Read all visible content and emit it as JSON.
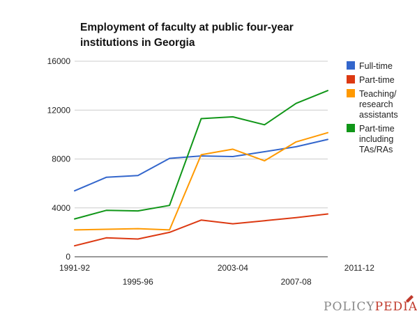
{
  "chart_data": {
    "type": "line",
    "title_lines": [
      "Employment of faculty at public four-year",
      "institutions in Georgia"
    ],
    "xlabel": "",
    "ylabel": "",
    "x": [
      "1991-92",
      "1993-94",
      "1995-96",
      "1997-98",
      "1999-00",
      "2003-04",
      "2005-06",
      "2007-08",
      "2009-10",
      "2011-12"
    ],
    "x_tick_labels": [
      {
        "label": "1991-92",
        "index": 0,
        "row": 1
      },
      {
        "label": "1995-96",
        "index": 2,
        "row": 2
      },
      {
        "label": "2003-04",
        "index": 5,
        "row": 1
      },
      {
        "label": "2007-08",
        "index": 7,
        "row": 2
      },
      {
        "label": "2011-12",
        "index": 9,
        "row": 1
      }
    ],
    "ylim": [
      0,
      16000
    ],
    "y_ticks": [
      "0",
      "4000",
      "8000",
      "12000",
      "16000"
    ],
    "grid": true,
    "legend_position": "right",
    "series": [
      {
        "name": "Full-time",
        "color": "#3366cc",
        "values": [
          5400,
          6500,
          6650,
          8050,
          8250,
          8200,
          8600,
          9000,
          9600,
          0
        ]
      },
      {
        "name": "Part-time",
        "color": "#dc3912",
        "values": [
          900,
          1550,
          1450,
          2000,
          3000,
          2700,
          2950,
          3200,
          3500,
          0
        ]
      },
      {
        "name": "Teaching/ research assistants",
        "color": "#ff9900",
        "values": [
          2200,
          2250,
          2300,
          2200,
          8350,
          8800,
          7850,
          9400,
          10150,
          0
        ]
      },
      {
        "name": "Part-time including TAs/RAs",
        "color": "#109618",
        "values": [
          3100,
          3800,
          3750,
          4200,
          11300,
          11450,
          10800,
          12550,
          13600,
          0
        ]
      }
    ],
    "legend": [
      {
        "lines": [
          "Full-time"
        ],
        "color": "#3366cc"
      },
      {
        "lines": [
          "Part-time"
        ],
        "color": "#dc3912"
      },
      {
        "lines": [
          "Teaching/",
          "research",
          "assistants"
        ],
        "color": "#ff9900"
      },
      {
        "lines": [
          "Part-time",
          "including",
          "TAs/RAs"
        ],
        "color": "#109618"
      }
    ]
  },
  "branding": {
    "logo_text_a": "POLICY",
    "logo_text_b": "PEDIA",
    "logo_color_a": "#888888",
    "logo_color_b": "#c0392b"
  }
}
